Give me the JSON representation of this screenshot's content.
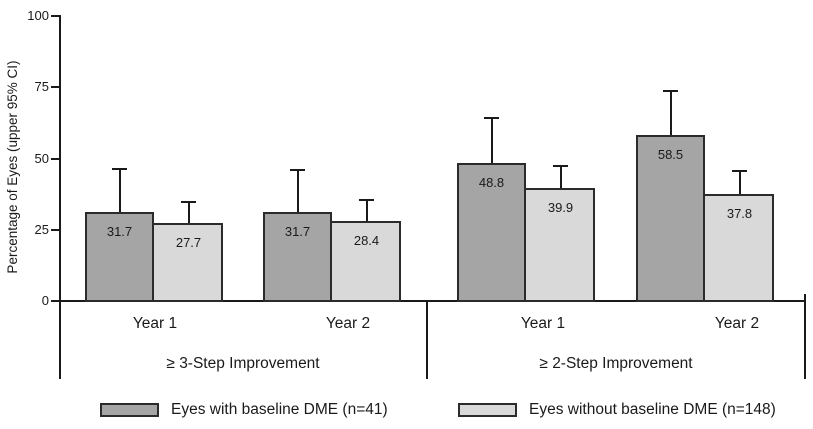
{
  "chart_data": {
    "type": "bar",
    "title": "",
    "xlabel": "",
    "ylabel": "Percentage of Eyes (upper 95% CI)",
    "ylim": [
      0,
      100
    ],
    "yticks": [
      0,
      25,
      50,
      75,
      100
    ],
    "grid": false,
    "legend_position": "bottom",
    "value_labels_shown": true,
    "error_bars": "upper 95% CI whiskers",
    "axis_color": "#1a1a1a",
    "groups": [
      {
        "label": "≥ 3-Step Improvement",
        "categories": [
          "Year 1",
          "Year 2"
        ]
      },
      {
        "label": "≥ 2-Step Improvement",
        "categories": [
          "Year 1",
          "Year 2"
        ]
      }
    ],
    "series": [
      {
        "name": "Eyes with baseline DME (n=41)",
        "color": "#a5a5a5",
        "border_color": "#2b2b2b",
        "values": [
          31.7,
          31.7,
          48.8,
          58.5
        ],
        "upper_ci": [
          46.3,
          46.0,
          64.2,
          73.7
        ]
      },
      {
        "name": "Eyes without baseline DME (n=148)",
        "color": "#d9d9d9",
        "border_color": "#2b2b2b",
        "values": [
          27.7,
          28.4,
          39.9,
          37.8
        ],
        "upper_ci": [
          34.7,
          35.4,
          47.4,
          45.6
        ]
      }
    ]
  }
}
